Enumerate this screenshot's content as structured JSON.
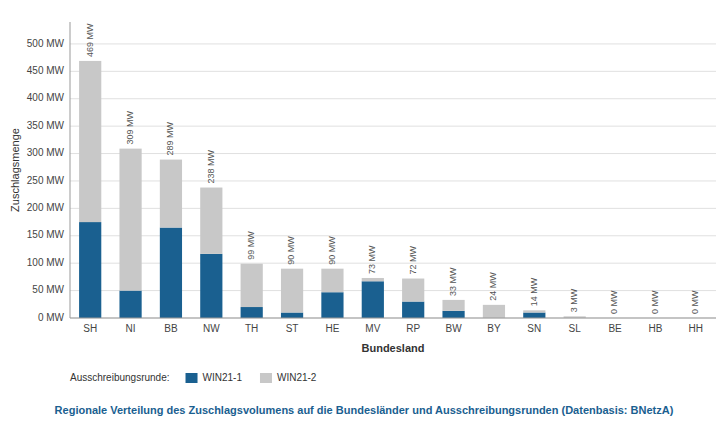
{
  "chart_data": {
    "type": "bar",
    "stacked": true,
    "title": "Regionale Verteilung des Zuschlagsvolumens auf die Bundesländer und Ausschreibungsrunden (Datenbasis: BNetzA)",
    "x_label": "Bundesland",
    "y_label": "Zuschlagsmenge",
    "legend_title": "Ausschreibungsrunde:",
    "categories": [
      "SH",
      "NI",
      "BB",
      "NW",
      "TH",
      "ST",
      "HE",
      "MV",
      "RP",
      "BW",
      "BY",
      "SN",
      "SL",
      "BE",
      "HB",
      "HH"
    ],
    "series": [
      {
        "name": "WIN21-1",
        "color": "#1a6090",
        "values": [
          175,
          50,
          165,
          117,
          20,
          10,
          47,
          67,
          30,
          13,
          0,
          10,
          0,
          0,
          0,
          0
        ]
      },
      {
        "name": "WIN21-2",
        "color": "#c8c8c8",
        "values": [
          294,
          259,
          124,
          121,
          79,
          80,
          43,
          6,
          42,
          20,
          24,
          4,
          3,
          0,
          0,
          0
        ]
      }
    ],
    "totals": [
      469,
      309,
      289,
      238,
      99,
      90,
      90,
      73,
      72,
      33,
      24,
      14,
      3,
      0,
      0,
      0
    ],
    "total_labels": [
      "469 MW",
      "309 MW",
      "289 MW",
      "238 MW",
      "99 MW",
      "90 MW",
      "90 MW",
      "73 MW",
      "72 MW",
      "33 MW",
      "24 MW",
      "14 MW",
      "3 MW",
      "0 MW",
      "0 MW",
      "0 MW"
    ],
    "ylim": [
      0,
      540
    ],
    "yticks": [
      {
        "value": 0,
        "label": "0 MW"
      },
      {
        "value": 50,
        "label": "50 MW"
      },
      {
        "value": 100,
        "label": "100 MW"
      },
      {
        "value": 150,
        "label": "150 MW"
      },
      {
        "value": 200,
        "label": "200 MW"
      },
      {
        "value": 250,
        "label": "250 MW"
      },
      {
        "value": 300,
        "label": "300 MW"
      },
      {
        "value": 350,
        "label": "350 MW"
      },
      {
        "value": 400,
        "label": "400 MW"
      },
      {
        "value": 450,
        "label": "450 MW"
      },
      {
        "value": 500,
        "label": "500 MW"
      }
    ],
    "grid": true,
    "legend": "bottom"
  }
}
